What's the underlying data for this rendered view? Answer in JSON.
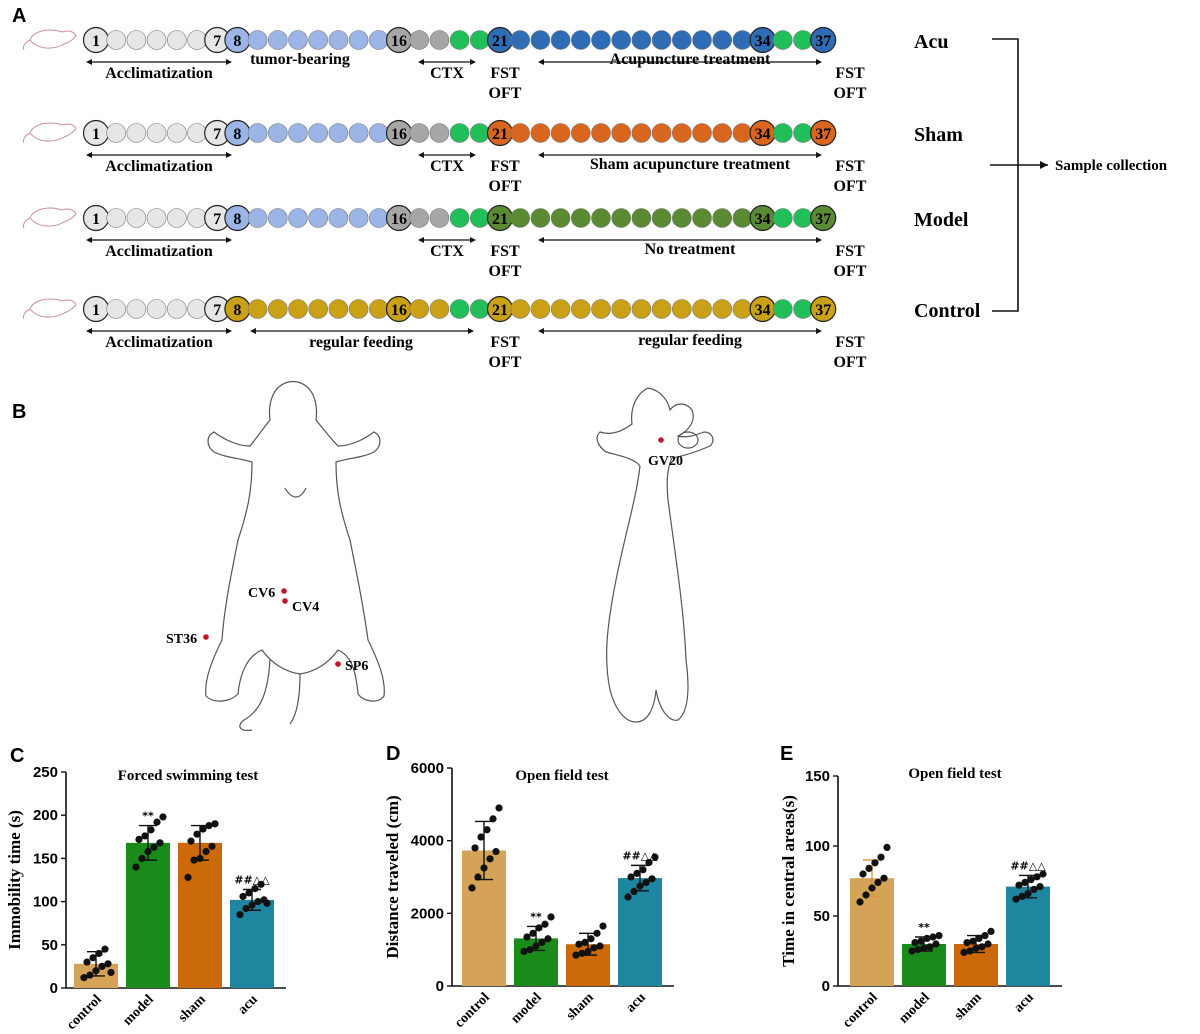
{
  "panel_a": {
    "letter": "A",
    "collection_label": "Sample collection",
    "colors": {
      "white": "#e6e6e6",
      "light_blue": "#9bb5e6",
      "grey": "#a6a6a6",
      "green": "#21bf5a",
      "blue": "#2e6db5",
      "orange": "#d9661f",
      "dark_green": "#5a8a32",
      "gold": "#c9a016"
    },
    "rows": [
      {
        "group": "Acu",
        "numbers": [
          "1",
          "7",
          "8",
          "16",
          "21",
          "34",
          "37"
        ],
        "labels": {
          "acclimatization": "Acclimatization",
          "phase2": "tumor-bearing",
          "ctx": "CTX",
          "fst": "FST",
          "oft": "OFT",
          "treatment": "Acupuncture treatment",
          "fst2": "FST",
          "oft2": "OFT"
        },
        "phase2_arrow": false,
        "treatment_color": "blue",
        "second_color": "light_blue",
        "has_ctx": true
      },
      {
        "group": "Sham",
        "numbers": [
          "1",
          "7",
          "8",
          "16",
          "21",
          "34",
          "37"
        ],
        "labels": {
          "acclimatization": "Acclimatization",
          "phase2": "",
          "ctx": "CTX",
          "fst": "FST",
          "oft": "OFT",
          "treatment": "Sham acupuncture treatment",
          "fst2": "FST",
          "oft2": "OFT"
        },
        "phase2_arrow": false,
        "treatment_color": "orange",
        "second_color": "light_blue",
        "has_ctx": true
      },
      {
        "group": "Model",
        "numbers": [
          "1",
          "7",
          "8",
          "16",
          "21",
          "34",
          "37"
        ],
        "labels": {
          "acclimatization": "Acclimatization",
          "phase2": "",
          "ctx": "CTX",
          "fst": "FST",
          "oft": "OFT",
          "treatment": "No treatment",
          "fst2": "FST",
          "oft2": "OFT"
        },
        "phase2_arrow": false,
        "treatment_color": "dark_green",
        "second_color": "light_blue",
        "has_ctx": true
      },
      {
        "group": "Control",
        "numbers": [
          "1",
          "7",
          "8",
          "16",
          "21",
          "34",
          "37"
        ],
        "labels": {
          "acclimatization": "Acclimatization",
          "phase2": "regular feeding",
          "ctx": "",
          "fst": "FST",
          "oft": "OFT",
          "treatment": "regular feeding",
          "fst2": "FST",
          "oft2": "OFT"
        },
        "phase2_arrow": true,
        "treatment_color": "gold",
        "second_color": "gold",
        "has_ctx": false
      }
    ]
  },
  "panel_b": {
    "letter": "B",
    "acupoints_ventral": [
      "CV6",
      "CV4",
      "ST36",
      "SP6"
    ],
    "acupoints_dorsal": [
      "GV20"
    ],
    "point_color": "#c0152a"
  },
  "chart_data": [
    {
      "type": "bar",
      "letter": "C",
      "title": "Forced swimming test",
      "xlabel": "",
      "ylabel": "Immobility time (s)",
      "categories": [
        "control",
        "model",
        "sham",
        "acu"
      ],
      "values": [
        28,
        168,
        168,
        102
      ],
      "errors": [
        14,
        20,
        20,
        12
      ],
      "ylim": [
        0,
        250
      ],
      "yticks": [
        0,
        50,
        100,
        150,
        200,
        250
      ],
      "colors": [
        "#d4a357",
        "#1a8a1a",
        "#cc6a0a",
        "#1f86a0"
      ],
      "annotations": [
        "",
        "**",
        "",
        "##△△"
      ],
      "points": [
        [
          12,
          15,
          20,
          25,
          28,
          30,
          35,
          40,
          45,
          18
        ],
        [
          140,
          150,
          158,
          163,
          168,
          172,
          176,
          183,
          192,
          198
        ],
        [
          128,
          148,
          150,
          158,
          164,
          170,
          178,
          184,
          188,
          190
        ],
        [
          85,
          92,
          96,
          100,
          102,
          106,
          110,
          115,
          120,
          98
        ]
      ]
    },
    {
      "type": "bar",
      "letter": "D",
      "title": "Open field test",
      "xlabel": "",
      "ylabel": "Distance traveled (cm)",
      "categories": [
        "control",
        "model",
        "sham",
        "acu"
      ],
      "values": [
        3730,
        1310,
        1150,
        2970
      ],
      "errors": [
        800,
        330,
        300,
        350
      ],
      "ylim": [
        0,
        6000
      ],
      "yticks": [
        0,
        2000,
        4000,
        6000
      ],
      "colors": [
        "#d4a357",
        "#1a8a1a",
        "#cc6a0a",
        "#1f86a0"
      ],
      "annotations": [
        "",
        "**",
        "",
        "##△△"
      ],
      "points": [
        [
          2700,
          3000,
          3250,
          3500,
          3700,
          3800,
          4100,
          4300,
          4600,
          4900
        ],
        [
          950,
          1000,
          1100,
          1200,
          1300,
          1350,
          1450,
          1600,
          1700,
          1900
        ],
        [
          850,
          900,
          950,
          1050,
          1100,
          1150,
          1200,
          1300,
          1450,
          1650
        ],
        [
          2450,
          2600,
          2750,
          2850,
          2950,
          3000,
          3100,
          3200,
          3400,
          3550
        ]
      ]
    },
    {
      "type": "bar",
      "letter": "E",
      "title": "Open field test",
      "xlabel": "",
      "ylabel": "Time in central areas(s)",
      "categories": [
        "control",
        "model",
        "sham",
        "acu"
      ],
      "values": [
        77,
        30,
        30,
        71
      ],
      "errors": [
        13,
        5,
        6,
        8
      ],
      "ylim": [
        0,
        150
      ],
      "yticks": [
        0,
        50,
        100,
        150
      ],
      "colors": [
        "#d4a357",
        "#1a8a1a",
        "#cc6a0a",
        "#1f86a0"
      ],
      "annotations": [
        "",
        "**",
        "",
        "##△△"
      ],
      "points": [
        [
          60,
          65,
          70,
          74,
          77,
          80,
          84,
          88,
          92,
          99
        ],
        [
          25,
          26,
          27,
          28,
          30,
          31,
          32,
          34,
          35,
          36
        ],
        [
          24,
          25,
          27,
          28,
          30,
          31,
          32,
          34,
          36,
          39
        ],
        [
          62,
          64,
          66,
          69,
          71,
          72,
          74,
          76,
          78,
          80
        ]
      ]
    }
  ]
}
